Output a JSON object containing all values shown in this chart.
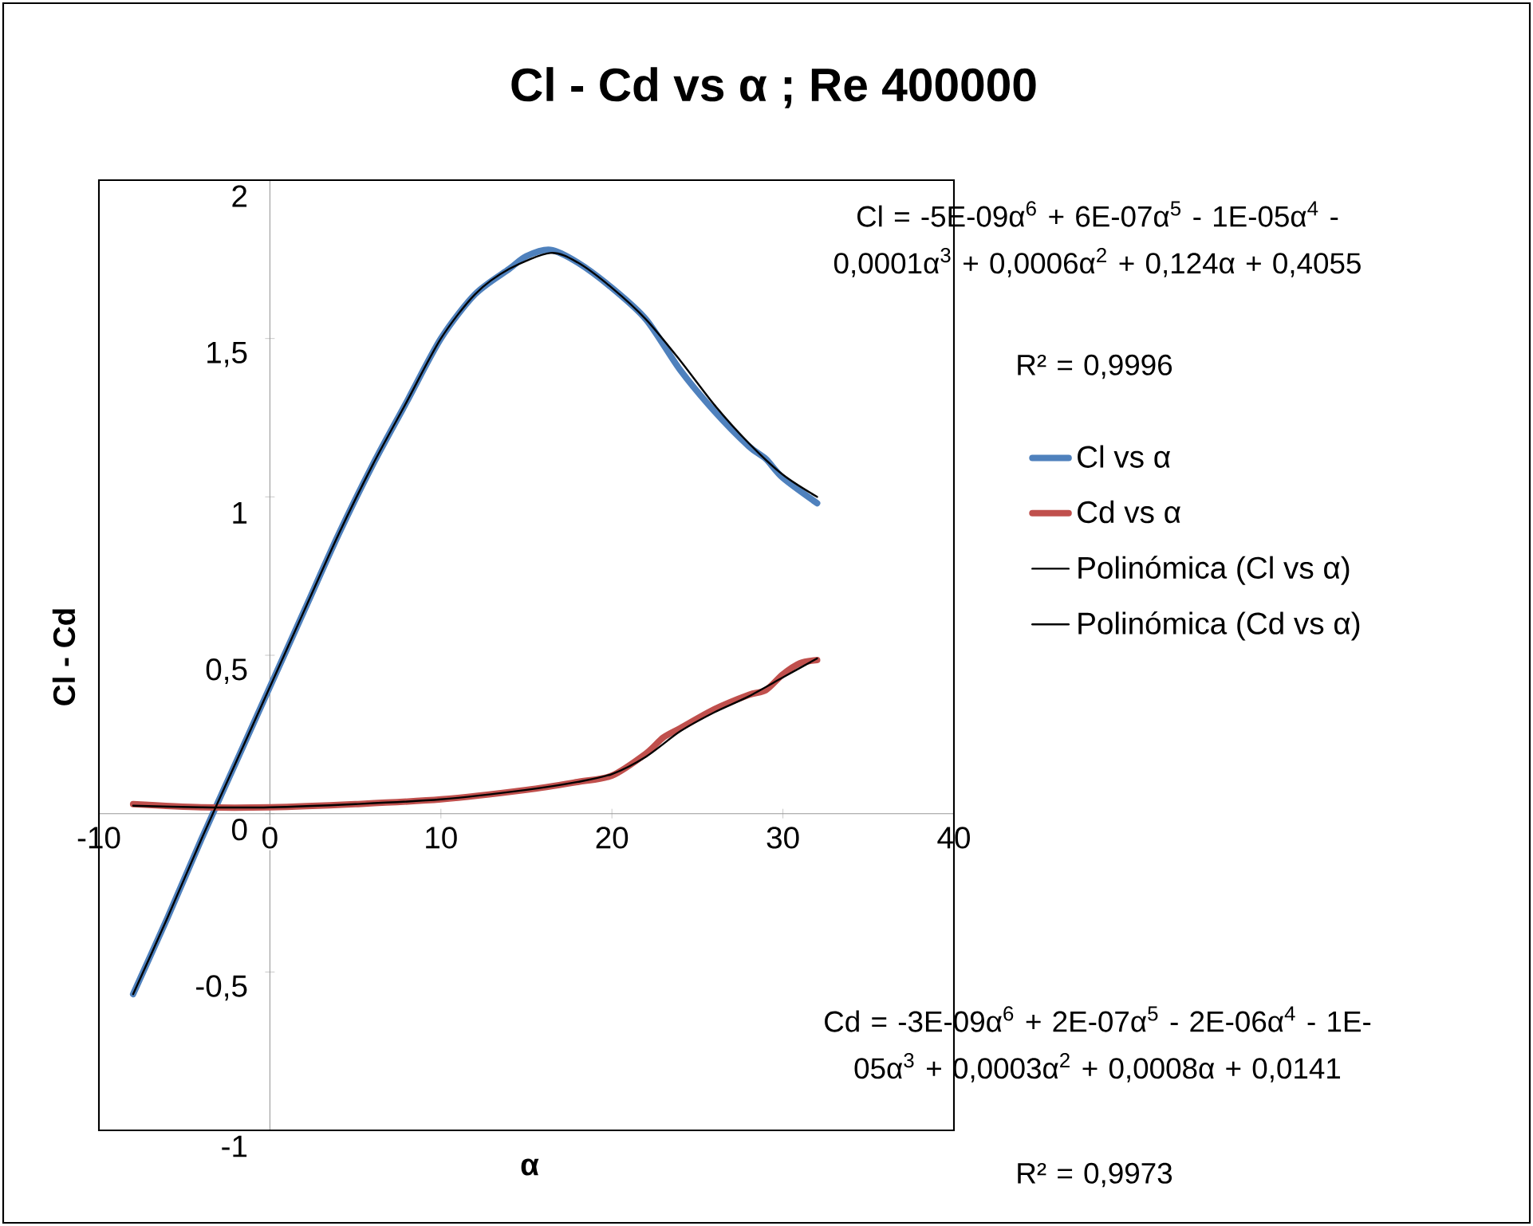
{
  "chart_data": {
    "type": "line",
    "title": "Cl - Cd vs α ; Re 400000",
    "xlabel": "α",
    "ylabel": "Cl - Cd",
    "xlim": [
      -10,
      40
    ],
    "ylim": [
      -1,
      2
    ],
    "xticks": [
      -10,
      0,
      10,
      20,
      30,
      40
    ],
    "yticks": [
      -1,
      {
        "value": -0.5,
        "label": "-0,5"
      },
      0,
      {
        "value": 0.5,
        "label": "0,5"
      },
      1,
      {
        "value": 1.5,
        "label": "1,5"
      },
      2
    ],
    "legend": "right",
    "marker": "none",
    "line_style": "solid",
    "series": [
      {
        "name": "Cl vs α",
        "color": "#4f81bd",
        "x": [
          -8,
          -6,
          -4,
          -2,
          0,
          2,
          4,
          6,
          8,
          10,
          12,
          14,
          15,
          16.4,
          18,
          20,
          22,
          24,
          26,
          28,
          29,
          30,
          32
        ],
        "values": [
          -0.57,
          -0.33,
          -0.08,
          0.16,
          0.4,
          0.64,
          0.88,
          1.1,
          1.3,
          1.5,
          1.64,
          1.72,
          1.76,
          1.78,
          1.74,
          1.66,
          1.56,
          1.4,
          1.27,
          1.16,
          1.12,
          1.06,
          0.98
        ]
      },
      {
        "name": "Cd vs α",
        "color": "#c0504d",
        "x": [
          -8,
          -4,
          0,
          5,
          10,
          15,
          18,
          20,
          22,
          23,
          24,
          26,
          28,
          29,
          30,
          31,
          32
        ],
        "values": [
          0.03,
          0.02,
          0.02,
          0.03,
          0.045,
          0.075,
          0.1,
          0.12,
          0.19,
          0.24,
          0.27,
          0.33,
          0.375,
          0.39,
          0.44,
          0.475,
          0.485
        ]
      },
      {
        "name": "Polinómica (Cl vs α)",
        "color": "#000000",
        "x": [
          -8,
          -6,
          -4,
          -2,
          0,
          2,
          4,
          6,
          8,
          10,
          12,
          14,
          16.4,
          18,
          20,
          22,
          24,
          26,
          28,
          30,
          32
        ],
        "values": [
          -0.57,
          -0.33,
          -0.08,
          0.16,
          0.4,
          0.64,
          0.88,
          1.1,
          1.3,
          1.5,
          1.64,
          1.72,
          1.77,
          1.74,
          1.66,
          1.56,
          1.43,
          1.29,
          1.17,
          1.07,
          1.0
        ]
      },
      {
        "name": "Polinómica (Cd vs α)",
        "color": "#000000",
        "x": [
          -8,
          -4,
          0,
          5,
          10,
          15,
          18,
          20,
          22,
          24,
          26,
          28,
          30,
          32
        ],
        "values": [
          0.025,
          0.02,
          0.02,
          0.03,
          0.045,
          0.075,
          0.1,
          0.125,
          0.18,
          0.26,
          0.32,
          0.37,
          0.43,
          0.49
        ]
      }
    ],
    "annotations": [
      "Cl = -5E-09α$^{6}$ + 6E-07α$^{5}$ - 1E-05α$^{4}$ - 0,0001α$^{3}$ + 0,0006α$^{2}$ + 0,124α + 0,4055",
      "R² = 0,9996",
      "Cd = -3E-09α$^{6}$ + 2E-07α$^{5}$ - 2E-06α$^{4}$ - 1E-05α$^{3}$ + 0,0003α$^{2}$ + 0,0008α + 0,0141",
      "R² = 0,9973"
    ]
  }
}
